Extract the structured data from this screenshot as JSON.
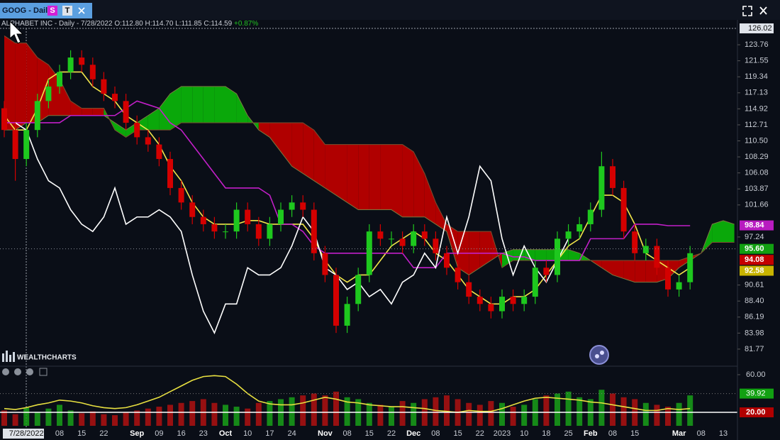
{
  "header": {
    "tab_title": "GOOG - Daily",
    "buttons": [
      "S",
      "T"
    ],
    "info": {
      "name": "ALPHABET INC - Daily - 7/28/2022",
      "open": "O:112.80",
      "high": "H:114.70",
      "low": "L:111.85",
      "close": "C:114.59",
      "change": "+0.87%"
    },
    "logo": "WEALTHCHARTS"
  },
  "chart_data": [
    {
      "type": "candlestick",
      "categories": [
        null,
        null,
        "7/28/2022",
        null,
        null,
        "08",
        null,
        "15",
        null,
        "22",
        null,
        null,
        "Sep",
        null,
        "09",
        null,
        "16",
        null,
        "23",
        null,
        "Oct",
        null,
        "10",
        null,
        "17",
        null,
        "24",
        null,
        null,
        "Nov",
        null,
        "08",
        null,
        "15",
        null,
        "22",
        null,
        "Dec",
        null,
        "08",
        null,
        "15",
        null,
        "22",
        null,
        "2023",
        null,
        "10",
        null,
        "18",
        null,
        "25",
        null,
        "Feb",
        null,
        "08",
        null,
        "15",
        null,
        null,
        null,
        "Mar",
        null,
        "08",
        null,
        "13",
        null
      ],
      "open": [
        115,
        112,
        108,
        112,
        116,
        118,
        120,
        122,
        121,
        119,
        117,
        116,
        113,
        111,
        110,
        108,
        104,
        102,
        100,
        99,
        98,
        98,
        101,
        99,
        97,
        99,
        101,
        102,
        101,
        95,
        92,
        85,
        88,
        92,
        98,
        97,
        97,
        96,
        98,
        97,
        95,
        93,
        91,
        89,
        88,
        87,
        89,
        88,
        89,
        93,
        92,
        97,
        98,
        99,
        101,
        107,
        104,
        98,
        95,
        96,
        93,
        90,
        91,
        null,
        null,
        null,
        null
      ],
      "high": [
        116,
        113,
        113,
        117,
        119,
        121,
        123,
        123,
        122,
        120,
        118,
        117,
        114,
        112,
        111,
        109,
        105,
        103,
        101,
        100,
        99,
        102,
        102,
        100,
        100,
        102,
        103,
        103,
        102,
        96,
        93,
        89,
        93,
        99,
        99,
        98,
        98,
        99,
        99,
        98,
        96,
        94,
        92,
        90,
        89,
        90,
        90,
        90,
        94,
        94,
        98,
        99,
        100,
        102,
        109,
        108,
        105,
        99,
        97,
        97,
        94,
        92,
        96,
        null,
        null,
        null,
        null
      ],
      "low": [
        111,
        105,
        107,
        111,
        115,
        117,
        119,
        120,
        118,
        116,
        115,
        112,
        110,
        109,
        107,
        103,
        101,
        99,
        98,
        97,
        97,
        97,
        98,
        96,
        96,
        98,
        100,
        100,
        94,
        91,
        84,
        84,
        87,
        91,
        96,
        96,
        95,
        95,
        96,
        94,
        92,
        90,
        88,
        87,
        86,
        86,
        87,
        87,
        88,
        91,
        91,
        96,
        97,
        98,
        100,
        103,
        97,
        94,
        94,
        92,
        89,
        89,
        90,
        null,
        null,
        null,
        null
      ],
      "close": [
        112,
        108,
        112,
        116,
        118,
        120,
        122,
        121,
        119,
        117,
        116,
        113,
        111,
        110,
        108,
        104,
        102,
        100,
        99,
        98,
        98,
        101,
        99,
        97,
        99,
        101,
        102,
        101,
        95,
        92,
        85,
        88,
        92,
        98,
        97,
        97,
        96,
        98,
        97,
        95,
        93,
        91,
        89,
        88,
        87,
        89,
        88,
        89,
        93,
        92,
        97,
        98,
        99,
        101,
        107,
        104,
        98,
        95,
        96,
        93,
        90,
        91,
        95,
        null,
        null,
        null,
        null
      ],
      "up_color": "#1ec81e",
      "down_color": "#d40000",
      "cloud": {
        "span_a": [
          112,
          112,
          113,
          113,
          114,
          114,
          114,
          114,
          114,
          114,
          113,
          112,
          113,
          114,
          115,
          117,
          118,
          118,
          118,
          118,
          118,
          117,
          114,
          112,
          111,
          109,
          107,
          106,
          105,
          104,
          103,
          102,
          101,
          101,
          101,
          101,
          100,
          100,
          100,
          99,
          98,
          93,
          92,
          93,
          94,
          95,
          95.5,
          95.5,
          95.5,
          95.5,
          95.5,
          95.5,
          95,
          94,
          93,
          92,
          91.5,
          91,
          91,
          91,
          91.5,
          93,
          94,
          95,
          99,
          99.5,
          99
        ],
        "span_b": [
          125,
          124,
          124,
          122,
          121,
          119,
          116,
          115,
          115,
          115,
          112,
          111,
          112,
          112,
          112,
          112,
          113,
          113,
          113,
          113,
          113,
          113,
          113,
          113,
          113,
          113,
          113,
          113,
          112,
          110,
          110,
          110,
          110,
          110,
          110,
          110,
          110,
          109,
          106,
          102,
          99,
          98,
          98,
          98,
          98,
          93,
          94,
          94,
          94,
          94,
          94,
          94,
          94,
          94,
          94,
          94,
          94,
          94,
          94,
          94,
          94,
          94,
          94.5,
          95,
          96.5,
          96.5,
          96.5
        ],
        "up_color": "#0aa80a",
        "down_color": "#b00000"
      },
      "lines": [
        {
          "color": "#f2e64a",
          "values": [
            114,
            112,
            112,
            115,
            119,
            120,
            120,
            120,
            118,
            117,
            116,
            114,
            113,
            112,
            110,
            107,
            105,
            102,
            100,
            99,
            99,
            99,
            99.5,
            99.5,
            99,
            99,
            99,
            99,
            97,
            94,
            92,
            91,
            92,
            92,
            94,
            96,
            97,
            98,
            97,
            95,
            94,
            92,
            90,
            89,
            88,
            88,
            89,
            89,
            90,
            92,
            94,
            96,
            97,
            100,
            103,
            103,
            102,
            99,
            95,
            94,
            93,
            92,
            93,
            null,
            null,
            null,
            null
          ]
        },
        {
          "color": "#c21fc8",
          "values": [
            113,
            113,
            113,
            113,
            113,
            113,
            114,
            114,
            114,
            114,
            114,
            115,
            116,
            115.5,
            115,
            113,
            112,
            110,
            108,
            106,
            104,
            104,
            104,
            104,
            103,
            99,
            99,
            98,
            96,
            95,
            95,
            95,
            95,
            95,
            95,
            95,
            95,
            93,
            93,
            93,
            95,
            95,
            95,
            95,
            95,
            95,
            94.5,
            94.5,
            94,
            94,
            94,
            94,
            94,
            97,
            97,
            97,
            97,
            99,
            99,
            99,
            98.8,
            98.8,
            98.8,
            null,
            null,
            null,
            null
          ]
        },
        {
          "color": "#ffffff",
          "values": [
            null,
            113,
            112,
            108,
            105,
            104,
            101,
            99,
            98,
            100,
            104,
            99,
            100,
            100,
            101,
            100,
            98,
            92,
            87,
            84,
            88,
            88,
            93,
            92,
            92,
            93,
            96,
            100,
            98,
            93,
            92,
            90,
            91,
            89,
            90,
            88,
            91,
            92,
            95,
            93,
            100,
            95,
            100,
            107,
            105,
            97,
            92,
            96,
            93,
            91,
            94,
            97,
            null,
            null,
            null,
            null,
            null,
            null,
            null,
            null,
            null,
            null,
            null,
            null,
            null,
            null,
            null
          ]
        }
      ],
      "ylim": [
        80,
        126.02
      ],
      "yticks": [
        123.76,
        121.55,
        119.34,
        117.13,
        114.92,
        112.71,
        {
          "value": 110.5,
          "label": "110.50"
        },
        108.29,
        106.08,
        103.87,
        101.66,
        97.24,
        90.61,
        {
          "value": 88.4,
          "label": "88.40"
        },
        86.19,
        83.98,
        81.77
      ],
      "crosshair_value": 126.02,
      "price_tags": [
        {
          "value": 98.84,
          "color": "#b81cc0"
        },
        {
          "value": 95.6,
          "label": "95.60",
          "color": "#12a012",
          "dotted": true
        },
        {
          "value": 94.08,
          "color": "#c40000"
        },
        {
          "value": 92.58,
          "color": "#c8b400"
        }
      ]
    },
    {
      "type": "bar",
      "values": [
        22,
        18,
        25,
        20,
        24,
        28,
        22,
        19,
        21,
        18,
        17,
        20,
        22,
        24,
        26,
        28,
        30,
        32,
        34,
        30,
        28,
        26,
        24,
        30,
        32,
        34,
        36,
        38,
        40,
        38,
        42,
        36,
        34,
        30,
        28,
        26,
        32,
        30,
        34,
        36,
        38,
        34,
        30,
        28,
        32,
        30,
        26,
        28,
        34,
        38,
        40,
        42,
        36,
        34,
        44,
        40,
        36,
        34,
        30,
        28,
        26,
        30,
        38,
        null,
        null,
        null,
        null
      ],
      "line": {
        "color": "#e8e040",
        "values": [
          24,
          23,
          25,
          28,
          30,
          33,
          32,
          30,
          27,
          25,
          24,
          25,
          28,
          32,
          36,
          42,
          48,
          54,
          58,
          59,
          58,
          50,
          40,
          32,
          29,
          28,
          28,
          30,
          33,
          36,
          34,
          31,
          30,
          28,
          27,
          26,
          26,
          25,
          24,
          22,
          21,
          20,
          22,
          21,
          21,
          24,
          28,
          32,
          35,
          36,
          35,
          34,
          33,
          31,
          30,
          28,
          26,
          24,
          22,
          22,
          24,
          23,
          24,
          null,
          null,
          null,
          null
        ]
      },
      "ylim": [
        5.7,
        66
      ],
      "yticks": [
        {
          "value": 60,
          "label": "60.00"
        }
      ],
      "reference": {
        "value": 20,
        "label": "20.00",
        "color": "#ffffff",
        "tag_color": "#b00000"
      },
      "tags": [
        {
          "value": 39.92,
          "color": "#12a012"
        }
      ]
    }
  ]
}
